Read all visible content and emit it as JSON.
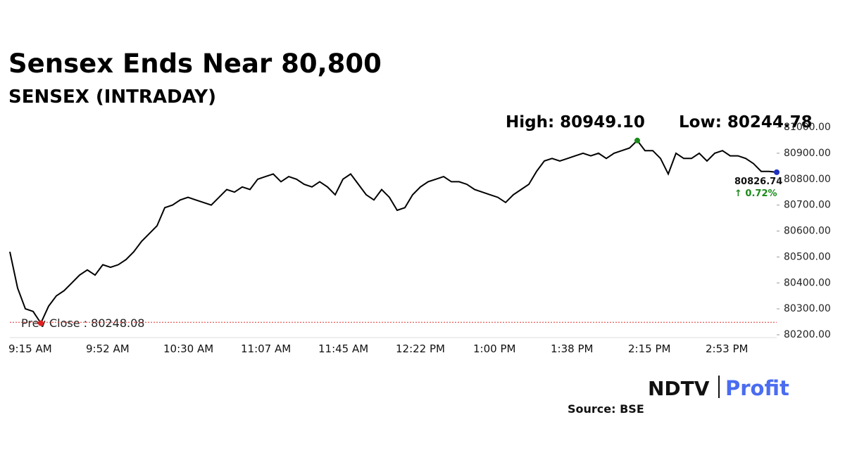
{
  "chart_data": {
    "type": "line",
    "title": "Sensex Ends Near 80,800",
    "subtitle": "SENSEX (INTRADAY)",
    "high_label": "High: 80949.10",
    "low_label": "Low: 80244.78",
    "last_label": "80826.74",
    "change_label": "↑ 0.72%",
    "prev_close_label": "Prev Close : 80248.08",
    "prev_close": 80248.08,
    "source": "Source: BSE",
    "logo": {
      "left": "NDTV",
      "right": "Profit"
    },
    "categories": [
      "9:15 AM",
      null,
      null,
      null,
      null,
      null,
      null,
      null,
      null,
      null,
      "9:52 AM",
      null,
      null,
      null,
      null,
      null,
      null,
      null,
      null,
      null,
      "10:30 AM",
      null,
      null,
      null,
      null,
      null,
      null,
      null,
      null,
      null,
      "11:07 AM",
      null,
      null,
      null,
      null,
      null,
      null,
      null,
      null,
      null,
      "11:45 AM",
      null,
      null,
      null,
      null,
      null,
      null,
      null,
      null,
      null,
      "12:22 PM",
      null,
      null,
      null,
      null,
      null,
      null,
      null,
      null,
      null,
      "1:00 PM",
      null,
      null,
      null,
      null,
      null,
      null,
      null,
      null,
      null,
      "1:38 PM",
      null,
      null,
      null,
      null,
      null,
      null,
      null,
      null,
      null,
      "2:15 PM",
      null,
      null,
      null,
      null,
      null,
      null,
      null,
      null,
      null,
      "2:53 PM",
      null,
      null,
      null,
      null,
      null,
      null,
      null,
      null,
      null
    ],
    "series": [
      {
        "name": "SENSEX",
        "color": "#000000",
        "values": [
          80520,
          80380,
          80300,
          80290,
          80244.78,
          80310,
          80350,
          80370,
          80400,
          80430,
          80450,
          80430,
          80470,
          80460,
          80470,
          80490,
          80520,
          80560,
          80590,
          80620,
          80690,
          80700,
          80720,
          80730,
          80720,
          80710,
          80700,
          80730,
          80760,
          80750,
          80770,
          80760,
          80800,
          80810,
          80820,
          80790,
          80810,
          80800,
          80780,
          80770,
          80790,
          80770,
          80740,
          80800,
          80820,
          80780,
          80740,
          80720,
          80760,
          80730,
          80680,
          80690,
          80740,
          80770,
          80790,
          80800,
          80810,
          80790,
          80790,
          80780,
          80760,
          80750,
          80740,
          80730,
          80710,
          80740,
          80760,
          80780,
          80830,
          80870,
          80880,
          80870,
          80880,
          80890,
          80900,
          80890,
          80900,
          80880,
          80900,
          80910,
          80920,
          80949.1,
          80910,
          80910,
          80880,
          80820,
          80900,
          80880,
          80880,
          80900,
          80870,
          80900,
          80910,
          80890,
          80890,
          80880,
          80860,
          80830,
          80830,
          80826.74
        ]
      }
    ],
    "high_index": 81,
    "low_index": 4,
    "marker_colors": {
      "high": "#1a8a1a",
      "low": "#e02020",
      "last": "#1f2fbf"
    },
    "ylim": [
      80200,
      81000
    ],
    "yticks": [
      {
        "value": 80200,
        "label": "80200.00"
      },
      {
        "value": 80300,
        "label": "80300.00"
      },
      {
        "value": 80400,
        "label": "80400.00"
      },
      {
        "value": 80500,
        "label": "80500.00"
      },
      {
        "value": 80600,
        "label": "80600.00"
      },
      {
        "value": 80700,
        "label": "80700.00"
      },
      {
        "value": 80800,
        "label": "80800.00"
      },
      {
        "value": 80900,
        "label": "80900.00"
      },
      {
        "value": 81000,
        "label": "81000.00"
      }
    ]
  }
}
